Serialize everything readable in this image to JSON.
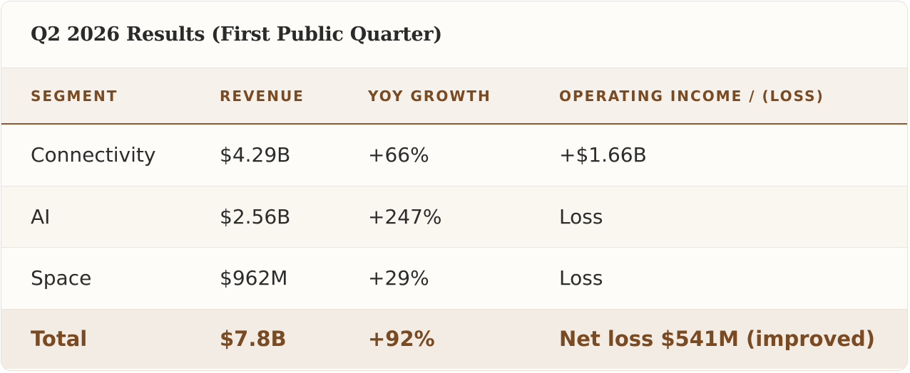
{
  "title": "Q2 2026 Results (First Public Quarter)",
  "columns": [
    "SEGMENT",
    "REVENUE",
    "YOY GROWTH",
    "OPERATING INCOME / (LOSS)"
  ],
  "rows": [
    [
      "Connectivity",
      "$4.29B",
      "+66%",
      "+$1.66B"
    ],
    [
      "AI",
      "$2.56B",
      "+247%",
      "Loss"
    ],
    [
      "Space",
      "$962M",
      "+29%",
      "Loss"
    ]
  ],
  "total": [
    "Total",
    "$7.8B",
    "+92%",
    "Net loss $541M (improved)"
  ],
  "colors": {
    "accent": "#7a4a22",
    "header_bg": "#f6f1ea",
    "total_bg": "#f3ece4",
    "card_bg": "#fdfcf9"
  }
}
